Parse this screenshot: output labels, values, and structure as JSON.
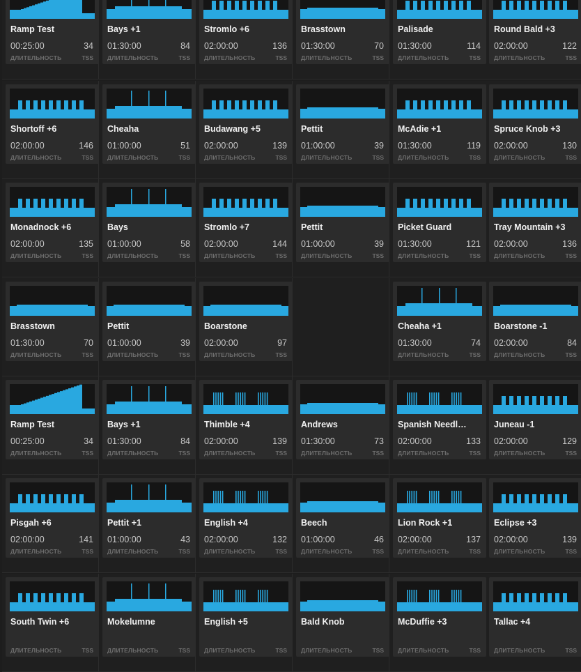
{
  "labels": {
    "duration": "ДЛИТЕЛЬНОСТЬ",
    "tss": "TSS"
  },
  "colors": {
    "bar": "#29a8e0",
    "chart_bg": "#151515",
    "card_bg": "#2c2c2c"
  },
  "weeks": [
    [
      {
        "title": "Ramp Test",
        "duration": "00:25:00",
        "tss": "34",
        "profile": "ramp"
      },
      {
        "title": "Bays +1",
        "duration": "01:30:00",
        "tss": "84",
        "profile": "spikes"
      },
      {
        "title": "Stromlo +6",
        "duration": "02:00:00",
        "tss": "136",
        "profile": "blocks"
      },
      {
        "title": "Brasstown",
        "duration": "01:30:00",
        "tss": "70",
        "profile": "flat"
      },
      {
        "title": "Palisade",
        "duration": "01:30:00",
        "tss": "114",
        "profile": "blocks"
      },
      {
        "title": "Round Bald +3",
        "duration": "02:00:00",
        "tss": "122",
        "profile": "blocks"
      }
    ],
    [
      {
        "title": "Shortoff +6",
        "duration": "02:00:00",
        "tss": "146",
        "profile": "blocks"
      },
      {
        "title": "Cheaha",
        "duration": "01:00:00",
        "tss": "51",
        "profile": "spikes"
      },
      {
        "title": "Budawang +5",
        "duration": "02:00:00",
        "tss": "139",
        "profile": "blocks"
      },
      {
        "title": "Pettit",
        "duration": "01:00:00",
        "tss": "39",
        "profile": "flat"
      },
      {
        "title": "McAdie +1",
        "duration": "01:30:00",
        "tss": "119",
        "profile": "blocks"
      },
      {
        "title": "Spruce Knob +3",
        "duration": "02:00:00",
        "tss": "130",
        "profile": "blocks"
      }
    ],
    [
      {
        "title": "Monadnock +6",
        "duration": "02:00:00",
        "tss": "135",
        "profile": "blocks"
      },
      {
        "title": "Bays",
        "duration": "01:00:00",
        "tss": "58",
        "profile": "spikes"
      },
      {
        "title": "Stromlo +7",
        "duration": "02:00:00",
        "tss": "144",
        "profile": "blocks"
      },
      {
        "title": "Pettit",
        "duration": "01:00:00",
        "tss": "39",
        "profile": "flat"
      },
      {
        "title": "Picket Guard",
        "duration": "01:30:00",
        "tss": "121",
        "profile": "blocks"
      },
      {
        "title": "Tray Mountain +3",
        "duration": "02:00:00",
        "tss": "136",
        "profile": "blocks"
      }
    ],
    [
      {
        "title": "Brasstown",
        "duration": "01:30:00",
        "tss": "70",
        "profile": "flat"
      },
      {
        "title": "Pettit",
        "duration": "01:00:00",
        "tss": "39",
        "profile": "flat"
      },
      {
        "title": "Boarstone",
        "duration": "02:00:00",
        "tss": "97",
        "profile": "flat"
      },
      null,
      {
        "title": "Cheaha +1",
        "duration": "01:30:00",
        "tss": "74",
        "profile": "spikes"
      },
      {
        "title": "Boarstone -1",
        "duration": "02:00:00",
        "tss": "84",
        "profile": "flat"
      }
    ],
    [
      {
        "title": "Ramp Test",
        "duration": "00:25:00",
        "tss": "34",
        "profile": "ramp"
      },
      {
        "title": "Bays +1",
        "duration": "01:30:00",
        "tss": "84",
        "profile": "spikes"
      },
      {
        "title": "Thimble +4",
        "duration": "02:00:00",
        "tss": "139",
        "profile": "dense"
      },
      {
        "title": "Andrews",
        "duration": "01:30:00",
        "tss": "73",
        "profile": "flat"
      },
      {
        "title": "Spanish Needl…",
        "duration": "02:00:00",
        "tss": "133",
        "profile": "dense"
      },
      {
        "title": "Juneau -1",
        "duration": "02:00:00",
        "tss": "129",
        "profile": "blocks"
      }
    ],
    [
      {
        "title": "Pisgah +6",
        "duration": "02:00:00",
        "tss": "141",
        "profile": "blocks"
      },
      {
        "title": "Pettit +1",
        "duration": "01:00:00",
        "tss": "43",
        "profile": "spikes"
      },
      {
        "title": "English +4",
        "duration": "02:00:00",
        "tss": "132",
        "profile": "dense"
      },
      {
        "title": "Beech",
        "duration": "01:00:00",
        "tss": "46",
        "profile": "flat"
      },
      {
        "title": "Lion Rock +1",
        "duration": "02:00:00",
        "tss": "137",
        "profile": "dense"
      },
      {
        "title": "Eclipse +3",
        "duration": "02:00:00",
        "tss": "139",
        "profile": "blocks"
      }
    ],
    [
      {
        "title": "South Twin +6",
        "duration": "",
        "tss": "",
        "profile": "blocks"
      },
      {
        "title": "Mokelumne",
        "duration": "",
        "tss": "",
        "profile": "spikes"
      },
      {
        "title": "English +5",
        "duration": "",
        "tss": "",
        "profile": "dense"
      },
      {
        "title": "Bald Knob",
        "duration": "",
        "tss": "",
        "profile": "flat"
      },
      {
        "title": "McDuffie +3",
        "duration": "",
        "tss": "",
        "profile": "dense"
      },
      {
        "title": "Tallac +4",
        "duration": "",
        "tss": "",
        "profile": "blocks"
      }
    ]
  ]
}
